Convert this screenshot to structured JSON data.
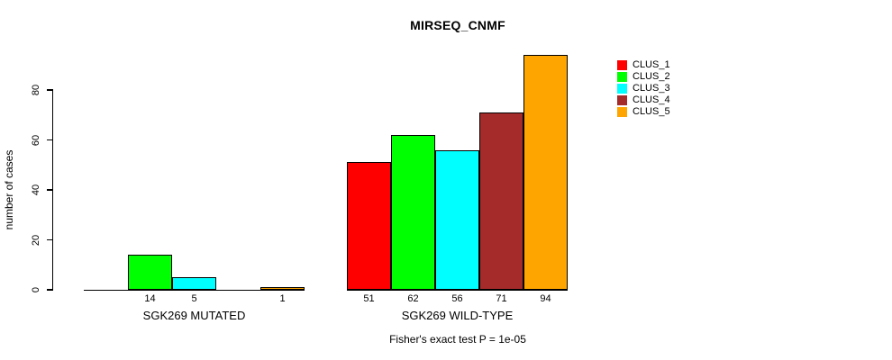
{
  "chart_data": {
    "type": "bar",
    "title": "MIRSEQ_CNMF",
    "ylabel": "number of cases",
    "xlabel": "",
    "ylim": [
      0,
      94
    ],
    "yticks": [
      0,
      20,
      40,
      60,
      80
    ],
    "grid": false,
    "legend_position": "right",
    "annotation": "Fisher's exact test P = 1e-05",
    "clusters": [
      {
        "name": "CLUS_1",
        "color": "#FF0000"
      },
      {
        "name": "CLUS_2",
        "color": "#00FF00"
      },
      {
        "name": "CLUS_3",
        "color": "#00FFFF"
      },
      {
        "name": "CLUS_4",
        "color": "#A52A2A"
      },
      {
        "name": "CLUS_5",
        "color": "#FFA500"
      }
    ],
    "groups": [
      {
        "label": "SGK269 MUTATED",
        "values": [
          0,
          14,
          5,
          0,
          1
        ]
      },
      {
        "label": "SGK269 WILD-TYPE",
        "values": [
          51,
          62,
          56,
          71,
          94
        ]
      }
    ]
  }
}
